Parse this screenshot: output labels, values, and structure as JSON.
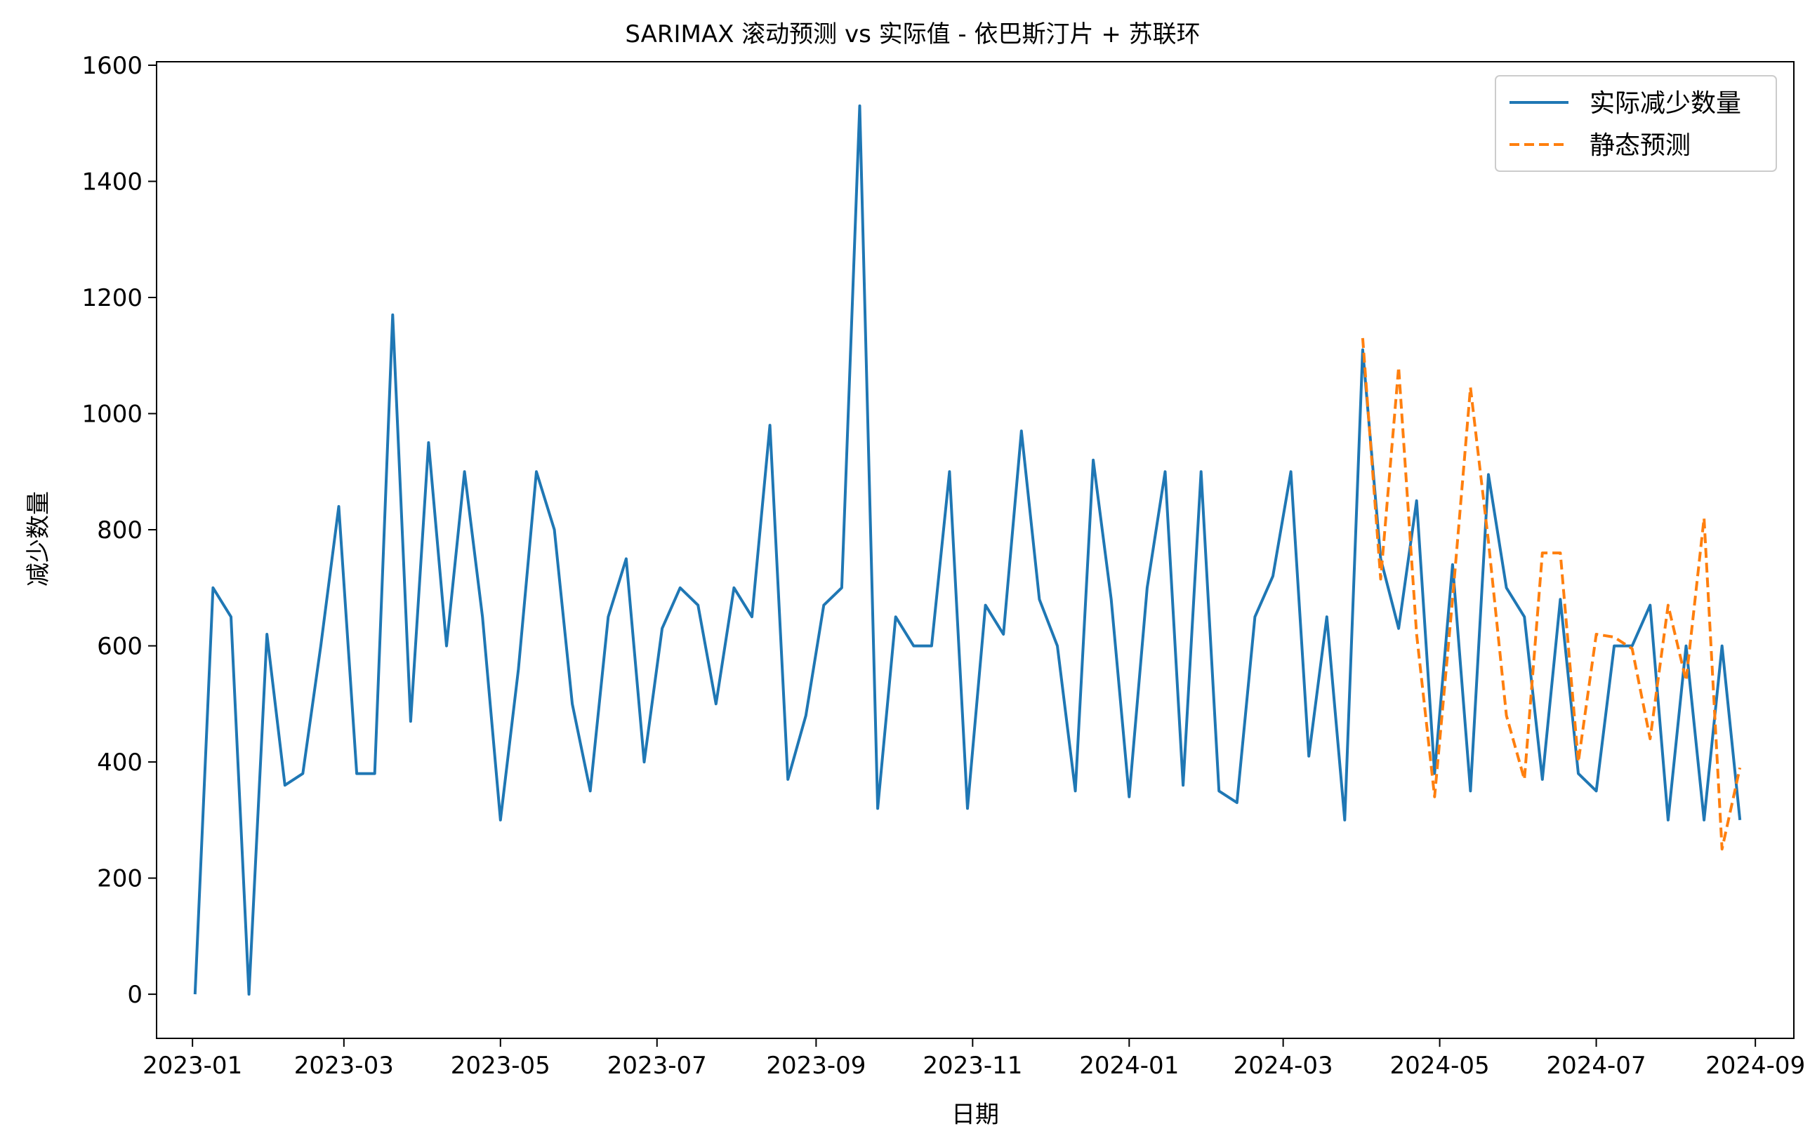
{
  "chart_data": {
    "type": "line",
    "title": "SARIMAX 滚动预测 vs 实际值 - 依巴斯汀片 + 苏联环",
    "xlabel": "日期",
    "ylabel": "减少数量",
    "xlim": [
      "2022-12-18",
      "2024-09-16"
    ],
    "ylim": [
      -76,
      1606
    ],
    "xticks": [
      "2023-01",
      "2023-03",
      "2023-05",
      "2023-07",
      "2023-09",
      "2023-11",
      "2024-01",
      "2024-03",
      "2024-05",
      "2024-07",
      "2024-09"
    ],
    "yticks": [
      0,
      200,
      400,
      600,
      800,
      1000,
      1200,
      1400,
      1600
    ],
    "legend_position": "top-right",
    "colors": {
      "actual": "#1f77b4",
      "forecast": "#ff7f0e"
    },
    "series": [
      {
        "name": "实际减少数量",
        "style": "solid",
        "color": "#1f77b4",
        "x": [
          "2023-01-02",
          "2023-01-09",
          "2023-01-16",
          "2023-01-23",
          "2023-01-30",
          "2023-02-06",
          "2023-02-13",
          "2023-02-20",
          "2023-02-27",
          "2023-03-06",
          "2023-03-13",
          "2023-03-20",
          "2023-03-27",
          "2023-04-03",
          "2023-04-10",
          "2023-04-17",
          "2023-04-24",
          "2023-05-01",
          "2023-05-08",
          "2023-05-15",
          "2023-05-22",
          "2023-05-29",
          "2023-06-05",
          "2023-06-12",
          "2023-06-19",
          "2023-06-26",
          "2023-07-03",
          "2023-07-10",
          "2023-07-17",
          "2023-07-24",
          "2023-07-31",
          "2023-08-07",
          "2023-08-14",
          "2023-08-21",
          "2023-08-28",
          "2023-09-04",
          "2023-09-11",
          "2023-09-18",
          "2023-09-25",
          "2023-10-02",
          "2023-10-09",
          "2023-10-16",
          "2023-10-23",
          "2023-10-30",
          "2023-11-06",
          "2023-11-13",
          "2023-11-20",
          "2023-11-27",
          "2023-12-04",
          "2023-12-11",
          "2023-12-18",
          "2023-12-25",
          "2024-01-01",
          "2024-01-08",
          "2024-01-15",
          "2024-01-22",
          "2024-01-29",
          "2024-02-05",
          "2024-02-12",
          "2024-02-19",
          "2024-02-26",
          "2024-03-04",
          "2024-03-11",
          "2024-03-18",
          "2024-03-25",
          "2024-04-01",
          "2024-04-08",
          "2024-04-15",
          "2024-04-22",
          "2024-04-29",
          "2024-05-06",
          "2024-05-13",
          "2024-05-20",
          "2024-05-27",
          "2024-06-03",
          "2024-06-10",
          "2024-06-17",
          "2024-06-24",
          "2024-07-01",
          "2024-07-08",
          "2024-07-15",
          "2024-07-22",
          "2024-07-29",
          "2024-08-05",
          "2024-08-12",
          "2024-08-19",
          "2024-08-26"
        ],
        "y": [
          0,
          700,
          650,
          0,
          620,
          360,
          380,
          600,
          840,
          380,
          380,
          1170,
          470,
          950,
          600,
          900,
          650,
          300,
          560,
          900,
          800,
          500,
          350,
          650,
          750,
          400,
          630,
          700,
          670,
          500,
          700,
          650,
          980,
          370,
          480,
          670,
          700,
          1530,
          320,
          650,
          600,
          600,
          900,
          320,
          670,
          620,
          970,
          680,
          600,
          350,
          920,
          680,
          340,
          700,
          900,
          360,
          900,
          350,
          330,
          650,
          720,
          900,
          410,
          650,
          300,
          1110,
          750,
          630,
          850,
          380,
          740,
          350,
          895,
          700,
          650,
          370,
          680,
          380,
          350,
          600,
          600,
          670,
          300,
          600,
          300,
          600,
          300
        ]
      },
      {
        "name": "静态预测",
        "style": "dashed",
        "color": "#ff7f0e",
        "x": [
          "2024-04-01",
          "2024-04-08",
          "2024-04-15",
          "2024-04-22",
          "2024-04-29",
          "2024-05-06",
          "2024-05-13",
          "2024-05-20",
          "2024-05-27",
          "2024-06-03",
          "2024-06-10",
          "2024-06-17",
          "2024-06-24",
          "2024-07-01",
          "2024-07-08",
          "2024-07-15",
          "2024-07-22",
          "2024-07-29",
          "2024-08-05",
          "2024-08-12",
          "2024-08-19",
          "2024-08-26"
        ],
        "y": [
          1130,
          715,
          1080,
          620,
          340,
          680,
          1045,
          780,
          480,
          370,
          760,
          760,
          400,
          620,
          615,
          595,
          440,
          670,
          540,
          820,
          250,
          390
        ]
      }
    ]
  }
}
